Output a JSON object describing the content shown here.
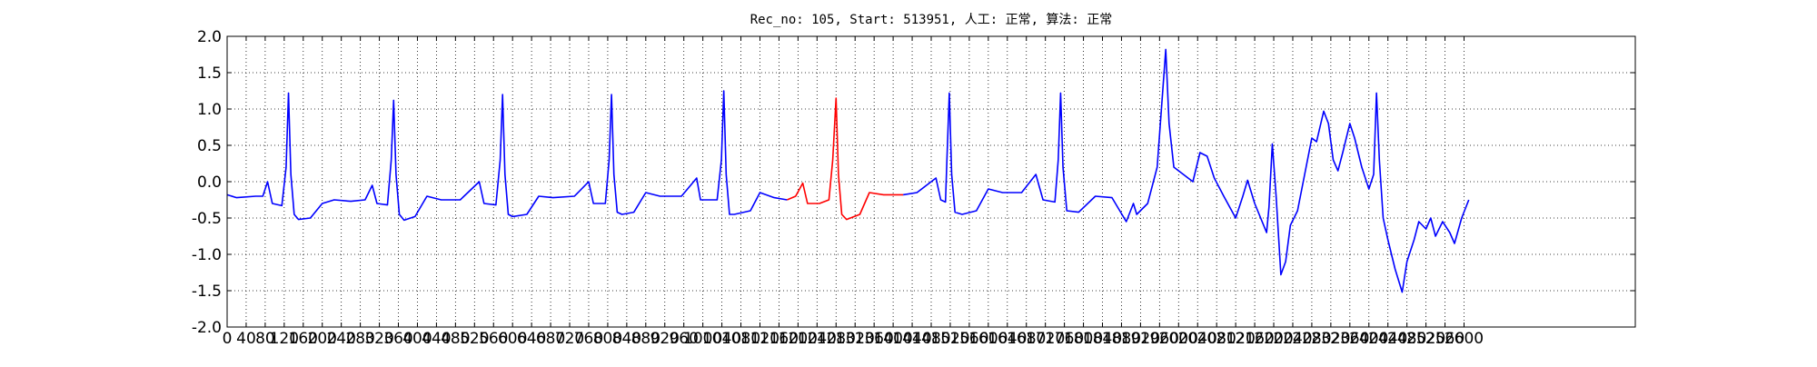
{
  "chart_data": {
    "type": "line",
    "title": "Rec_no: 105, Start: 513951, 人工: 正常, 算法: 正常",
    "xlim": [
      0,
      2960
    ],
    "ylim": [
      -2,
      2
    ],
    "grid": true,
    "xticks": [
      0,
      40,
      80,
      120,
      160,
      200,
      240,
      280,
      320,
      360,
      400,
      440,
      480,
      520,
      560,
      600,
      640,
      680,
      720,
      760,
      800,
      840,
      880,
      920,
      960,
      1000,
      1040,
      1080,
      1120,
      1160,
      1200,
      1240,
      1280,
      1320,
      1360,
      1400,
      1440,
      1480,
      1520,
      1560,
      1600,
      1640,
      1680,
      1720,
      1760,
      1800,
      1840,
      1880,
      1920,
      1960,
      2000,
      2040,
      2080,
      2120,
      2160,
      2200,
      2240,
      2280,
      2320,
      2360,
      2400,
      2440,
      2480,
      2520,
      2560,
      2600
    ],
    "yticks": [
      {
        "value": -2,
        "label": "-2.0"
      },
      -1.5,
      {
        "value": -1,
        "label": "-1.0"
      },
      -0.5,
      {
        "value": 0,
        "label": "0.0"
      },
      0.5,
      {
        "value": 1,
        "label": "1.0"
      },
      1.5,
      {
        "value": 2,
        "label": "2.0"
      }
    ],
    "series": [
      {
        "color": "#0000ff",
        "x": [
          0,
          20,
          60,
          75,
          85,
          95,
          115,
          124,
          129,
          134,
          141,
          150,
          175,
          200,
          225,
          260,
          290,
          305,
          315,
          337,
          345,
          350,
          355,
          362,
          372,
          395,
          420,
          450,
          490,
          530,
          540,
          565,
          574,
          579,
          584,
          591,
          600,
          630,
          655,
          685,
          730,
          760,
          770,
          795,
          803,
          808,
          813,
          820,
          830,
          855,
          880,
          910,
          955,
          987,
          995,
          1030,
          1039,
          1044,
          1049,
          1056,
          1066,
          1100,
          1120,
          1150,
          1177,
          1300,
          1421,
          1450,
          1490,
          1500,
          1510,
          1513,
          1518,
          1523,
          1530,
          1545,
          1575,
          1600,
          1630,
          1670,
          1700,
          1715,
          1740,
          1747,
          1752,
          1757,
          1765,
          1790,
          1825,
          1860,
          1890,
          1905,
          1912,
          1935,
          1955,
          1973,
          1980,
          1990,
          2010,
          2030,
          2045,
          2060,
          2075,
          2095,
          2120,
          2135,
          2145,
          2160,
          2185,
          2190,
          2197,
          2205,
          2215,
          2225,
          2235,
          2250,
          2265,
          2280,
          2290,
          2305,
          2315,
          2325,
          2335,
          2345,
          2360,
          2370,
          2385,
          2400,
          2410,
          2416,
          2422,
          2430,
          2440,
          2455,
          2470,
          2480,
          2495,
          2505,
          2520,
          2530,
          2540,
          2555,
          2570,
          2580,
          2595,
          2610
        ],
        "values": [
          -0.18,
          -0.22,
          -0.2,
          -0.2,
          0.0,
          -0.3,
          -0.33,
          0.2,
          1.22,
          0.1,
          -0.45,
          -0.52,
          -0.5,
          -0.3,
          -0.25,
          -0.27,
          -0.25,
          -0.05,
          -0.3,
          -0.32,
          0.3,
          1.12,
          0.1,
          -0.45,
          -0.53,
          -0.48,
          -0.2,
          -0.25,
          -0.25,
          0.0,
          -0.3,
          -0.32,
          0.3,
          1.2,
          0.1,
          -0.45,
          -0.48,
          -0.45,
          -0.2,
          -0.22,
          -0.2,
          0.0,
          -0.3,
          -0.3,
          0.3,
          1.2,
          0.1,
          -0.42,
          -0.45,
          -0.42,
          -0.15,
          -0.2,
          -0.2,
          0.05,
          -0.25,
          -0.25,
          0.3,
          1.25,
          0.1,
          -0.45,
          -0.45,
          -0.4,
          -0.15,
          -0.22,
          -0.25,
          null,
          -0.18,
          -0.15,
          0.05,
          -0.25,
          -0.28,
          0.3,
          1.22,
          0.1,
          -0.42,
          -0.45,
          -0.4,
          -0.1,
          -0.15,
          -0.15,
          0.1,
          -0.25,
          -0.28,
          0.3,
          1.22,
          0.2,
          -0.4,
          -0.42,
          -0.2,
          -0.22,
          -0.55,
          -0.3,
          -0.45,
          -0.3,
          0.2,
          1.82,
          0.8,
          0.2,
          0.1,
          0.0,
          0.4,
          0.35,
          0.05,
          -0.2,
          -0.5,
          -0.2,
          0.02,
          -0.3,
          -0.7,
          -0.35,
          0.52,
          -0.2,
          -1.28,
          -1.1,
          -0.6,
          -0.4,
          0.1,
          0.6,
          0.55,
          0.97,
          0.8,
          0.3,
          0.15,
          0.4,
          0.8,
          0.6,
          0.2,
          -0.1,
          0.1,
          1.22,
          0.3,
          -0.5,
          -0.8,
          -1.2,
          -1.52,
          -1.1,
          -0.8,
          -0.55,
          -0.65,
          -0.5,
          -0.75,
          -0.55,
          -0.7,
          -0.85,
          -0.5,
          -0.25
        ]
      },
      {
        "color": "#ff0000",
        "x": [
          1177,
          1195,
          1210,
          1220,
          1245,
          1265,
          1273,
          1280,
          1285,
          1292,
          1302,
          1330,
          1350,
          1380,
          1421
        ],
        "values": [
          -0.25,
          -0.2,
          -0.02,
          -0.3,
          -0.3,
          -0.25,
          0.3,
          1.15,
          0.1,
          -0.45,
          -0.52,
          -0.45,
          -0.15,
          -0.18,
          -0.18
        ]
      }
    ]
  }
}
